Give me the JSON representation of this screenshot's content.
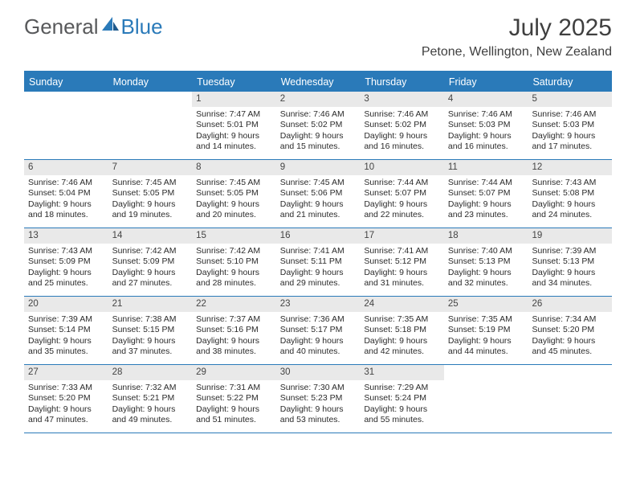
{
  "brand": {
    "text_general": "General",
    "text_blue": "Blue"
  },
  "title": {
    "month": "July 2025",
    "location": "Petone, Wellington, New Zealand"
  },
  "colors": {
    "accent": "#2a7ab9",
    "header_text": "#ffffff",
    "daynum_bg": "#e9e9e9",
    "body_text": "#2b2b2b"
  },
  "day_headers": [
    "Sunday",
    "Monday",
    "Tuesday",
    "Wednesday",
    "Thursday",
    "Friday",
    "Saturday"
  ],
  "weeks": [
    [
      {
        "n": "",
        "sr": "",
        "ss": "",
        "dl1": "",
        "dl2": "",
        "empty": true
      },
      {
        "n": "",
        "sr": "",
        "ss": "",
        "dl1": "",
        "dl2": "",
        "empty": true
      },
      {
        "n": "1",
        "sr": "Sunrise: 7:47 AM",
        "ss": "Sunset: 5:01 PM",
        "dl1": "Daylight: 9 hours",
        "dl2": "and 14 minutes."
      },
      {
        "n": "2",
        "sr": "Sunrise: 7:46 AM",
        "ss": "Sunset: 5:02 PM",
        "dl1": "Daylight: 9 hours",
        "dl2": "and 15 minutes."
      },
      {
        "n": "3",
        "sr": "Sunrise: 7:46 AM",
        "ss": "Sunset: 5:02 PM",
        "dl1": "Daylight: 9 hours",
        "dl2": "and 16 minutes."
      },
      {
        "n": "4",
        "sr": "Sunrise: 7:46 AM",
        "ss": "Sunset: 5:03 PM",
        "dl1": "Daylight: 9 hours",
        "dl2": "and 16 minutes."
      },
      {
        "n": "5",
        "sr": "Sunrise: 7:46 AM",
        "ss": "Sunset: 5:03 PM",
        "dl1": "Daylight: 9 hours",
        "dl2": "and 17 minutes."
      }
    ],
    [
      {
        "n": "6",
        "sr": "Sunrise: 7:46 AM",
        "ss": "Sunset: 5:04 PM",
        "dl1": "Daylight: 9 hours",
        "dl2": "and 18 minutes."
      },
      {
        "n": "7",
        "sr": "Sunrise: 7:45 AM",
        "ss": "Sunset: 5:05 PM",
        "dl1": "Daylight: 9 hours",
        "dl2": "and 19 minutes."
      },
      {
        "n": "8",
        "sr": "Sunrise: 7:45 AM",
        "ss": "Sunset: 5:05 PM",
        "dl1": "Daylight: 9 hours",
        "dl2": "and 20 minutes."
      },
      {
        "n": "9",
        "sr": "Sunrise: 7:45 AM",
        "ss": "Sunset: 5:06 PM",
        "dl1": "Daylight: 9 hours",
        "dl2": "and 21 minutes."
      },
      {
        "n": "10",
        "sr": "Sunrise: 7:44 AM",
        "ss": "Sunset: 5:07 PM",
        "dl1": "Daylight: 9 hours",
        "dl2": "and 22 minutes."
      },
      {
        "n": "11",
        "sr": "Sunrise: 7:44 AM",
        "ss": "Sunset: 5:07 PM",
        "dl1": "Daylight: 9 hours",
        "dl2": "and 23 minutes."
      },
      {
        "n": "12",
        "sr": "Sunrise: 7:43 AM",
        "ss": "Sunset: 5:08 PM",
        "dl1": "Daylight: 9 hours",
        "dl2": "and 24 minutes."
      }
    ],
    [
      {
        "n": "13",
        "sr": "Sunrise: 7:43 AM",
        "ss": "Sunset: 5:09 PM",
        "dl1": "Daylight: 9 hours",
        "dl2": "and 25 minutes."
      },
      {
        "n": "14",
        "sr": "Sunrise: 7:42 AM",
        "ss": "Sunset: 5:09 PM",
        "dl1": "Daylight: 9 hours",
        "dl2": "and 27 minutes."
      },
      {
        "n": "15",
        "sr": "Sunrise: 7:42 AM",
        "ss": "Sunset: 5:10 PM",
        "dl1": "Daylight: 9 hours",
        "dl2": "and 28 minutes."
      },
      {
        "n": "16",
        "sr": "Sunrise: 7:41 AM",
        "ss": "Sunset: 5:11 PM",
        "dl1": "Daylight: 9 hours",
        "dl2": "and 29 minutes."
      },
      {
        "n": "17",
        "sr": "Sunrise: 7:41 AM",
        "ss": "Sunset: 5:12 PM",
        "dl1": "Daylight: 9 hours",
        "dl2": "and 31 minutes."
      },
      {
        "n": "18",
        "sr": "Sunrise: 7:40 AM",
        "ss": "Sunset: 5:13 PM",
        "dl1": "Daylight: 9 hours",
        "dl2": "and 32 minutes."
      },
      {
        "n": "19",
        "sr": "Sunrise: 7:39 AM",
        "ss": "Sunset: 5:13 PM",
        "dl1": "Daylight: 9 hours",
        "dl2": "and 34 minutes."
      }
    ],
    [
      {
        "n": "20",
        "sr": "Sunrise: 7:39 AM",
        "ss": "Sunset: 5:14 PM",
        "dl1": "Daylight: 9 hours",
        "dl2": "and 35 minutes."
      },
      {
        "n": "21",
        "sr": "Sunrise: 7:38 AM",
        "ss": "Sunset: 5:15 PM",
        "dl1": "Daylight: 9 hours",
        "dl2": "and 37 minutes."
      },
      {
        "n": "22",
        "sr": "Sunrise: 7:37 AM",
        "ss": "Sunset: 5:16 PM",
        "dl1": "Daylight: 9 hours",
        "dl2": "and 38 minutes."
      },
      {
        "n": "23",
        "sr": "Sunrise: 7:36 AM",
        "ss": "Sunset: 5:17 PM",
        "dl1": "Daylight: 9 hours",
        "dl2": "and 40 minutes."
      },
      {
        "n": "24",
        "sr": "Sunrise: 7:35 AM",
        "ss": "Sunset: 5:18 PM",
        "dl1": "Daylight: 9 hours",
        "dl2": "and 42 minutes."
      },
      {
        "n": "25",
        "sr": "Sunrise: 7:35 AM",
        "ss": "Sunset: 5:19 PM",
        "dl1": "Daylight: 9 hours",
        "dl2": "and 44 minutes."
      },
      {
        "n": "26",
        "sr": "Sunrise: 7:34 AM",
        "ss": "Sunset: 5:20 PM",
        "dl1": "Daylight: 9 hours",
        "dl2": "and 45 minutes."
      }
    ],
    [
      {
        "n": "27",
        "sr": "Sunrise: 7:33 AM",
        "ss": "Sunset: 5:20 PM",
        "dl1": "Daylight: 9 hours",
        "dl2": "and 47 minutes."
      },
      {
        "n": "28",
        "sr": "Sunrise: 7:32 AM",
        "ss": "Sunset: 5:21 PM",
        "dl1": "Daylight: 9 hours",
        "dl2": "and 49 minutes."
      },
      {
        "n": "29",
        "sr": "Sunrise: 7:31 AM",
        "ss": "Sunset: 5:22 PM",
        "dl1": "Daylight: 9 hours",
        "dl2": "and 51 minutes."
      },
      {
        "n": "30",
        "sr": "Sunrise: 7:30 AM",
        "ss": "Sunset: 5:23 PM",
        "dl1": "Daylight: 9 hours",
        "dl2": "and 53 minutes."
      },
      {
        "n": "31",
        "sr": "Sunrise: 7:29 AM",
        "ss": "Sunset: 5:24 PM",
        "dl1": "Daylight: 9 hours",
        "dl2": "and 55 minutes."
      },
      {
        "n": "",
        "sr": "",
        "ss": "",
        "dl1": "",
        "dl2": "",
        "empty": true
      },
      {
        "n": "",
        "sr": "",
        "ss": "",
        "dl1": "",
        "dl2": "",
        "empty": true
      }
    ]
  ]
}
